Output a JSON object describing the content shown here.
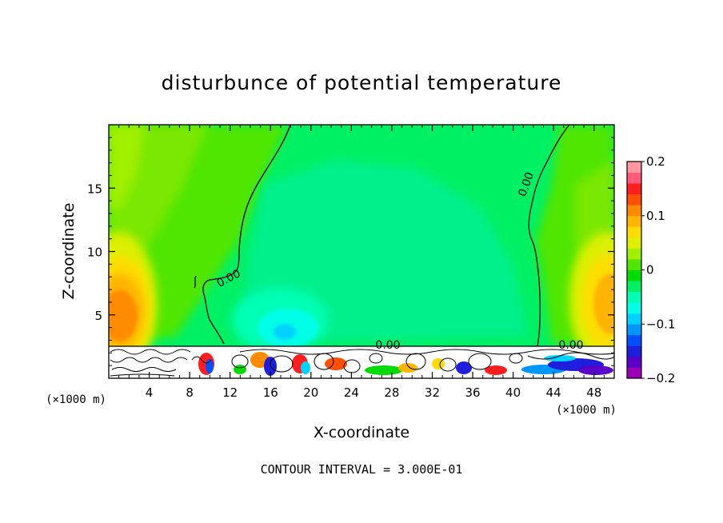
{
  "chart_data": {
    "type": "heatmap",
    "title": "disturbunce of potential temperature",
    "xlabel": "X-coordinate",
    "ylabel": "Z-coordinate",
    "x_unit": "(×1000 m)",
    "y_unit": "(×1000 m)",
    "xlim": [
      0,
      50
    ],
    "ylim": [
      0,
      20
    ],
    "x_ticks": [
      4,
      8,
      12,
      16,
      20,
      24,
      28,
      32,
      36,
      40,
      44,
      48
    ],
    "y_ticks": [
      5,
      10,
      15
    ],
    "colorbar": {
      "min": -0.2,
      "max": 0.2,
      "ticks": [
        0.2,
        0.1,
        0,
        -0.1,
        -0.2
      ],
      "tick_labels": [
        "0.2",
        "0.1",
        "0",
        "−0.1",
        "−0.2"
      ],
      "colors": [
        "#9b00b4",
        "#5a00c8",
        "#1e1edc",
        "#0050ff",
        "#0096ff",
        "#00d2ff",
        "#00ffe6",
        "#00ffb4",
        "#00f064",
        "#00dc00",
        "#50e600",
        "#a0f000",
        "#dcf000",
        "#ffdc00",
        "#ffb400",
        "#ff8c00",
        "#ff5000",
        "#ff1e1e",
        "#ff5a78",
        "#ff96a0"
      ]
    },
    "contour_labels": [
      {
        "text": "0.00",
        "x": 10.5,
        "z": 7.8
      },
      {
        "text": "0.00",
        "x": 41.5,
        "z": 15.5
      },
      {
        "text": "0.00",
        "x": 22.5,
        "z": 2.6
      },
      {
        "text": "0.00",
        "x": 45.5,
        "z": 2.6
      }
    ],
    "contour_interval_text": "CONTOUR INTERVAL = 3.000E-01"
  },
  "colors": {
    "background": "#ffffff",
    "domain_base": "#00f064"
  }
}
